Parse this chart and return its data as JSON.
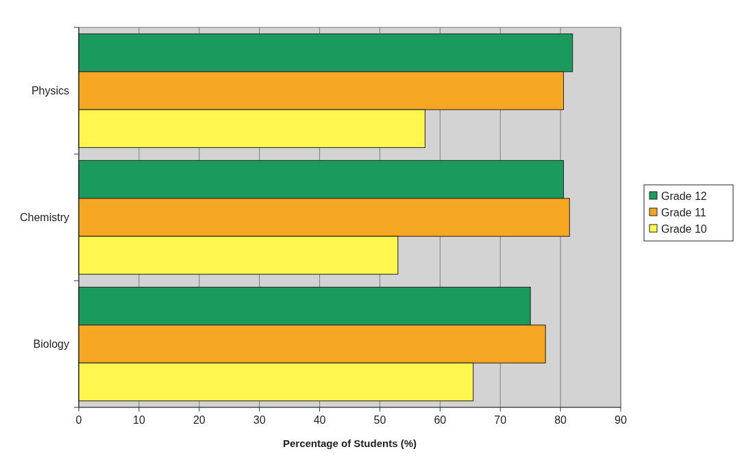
{
  "chart_data": {
    "type": "bar",
    "orientation": "horizontal",
    "categories": [
      "Physics",
      "Chemistry",
      "Biology"
    ],
    "series": [
      {
        "name": "Grade 12",
        "color": "#1a9a5c",
        "values": [
          82,
          80.5,
          75
        ]
      },
      {
        "name": "Grade 11",
        "color": "#f5a623",
        "values": [
          80.5,
          81.5,
          77.5
        ]
      },
      {
        "name": "Grade 10",
        "color": "#fff650",
        "values": [
          57.5,
          53,
          65.5
        ]
      }
    ],
    "xlim": [
      0,
      90
    ],
    "xticks": [
      0,
      10,
      20,
      30,
      40,
      50,
      60,
      70,
      80,
      90
    ],
    "xlabel": "Percentage of Students (%)",
    "grid": "x",
    "legend": "right"
  }
}
